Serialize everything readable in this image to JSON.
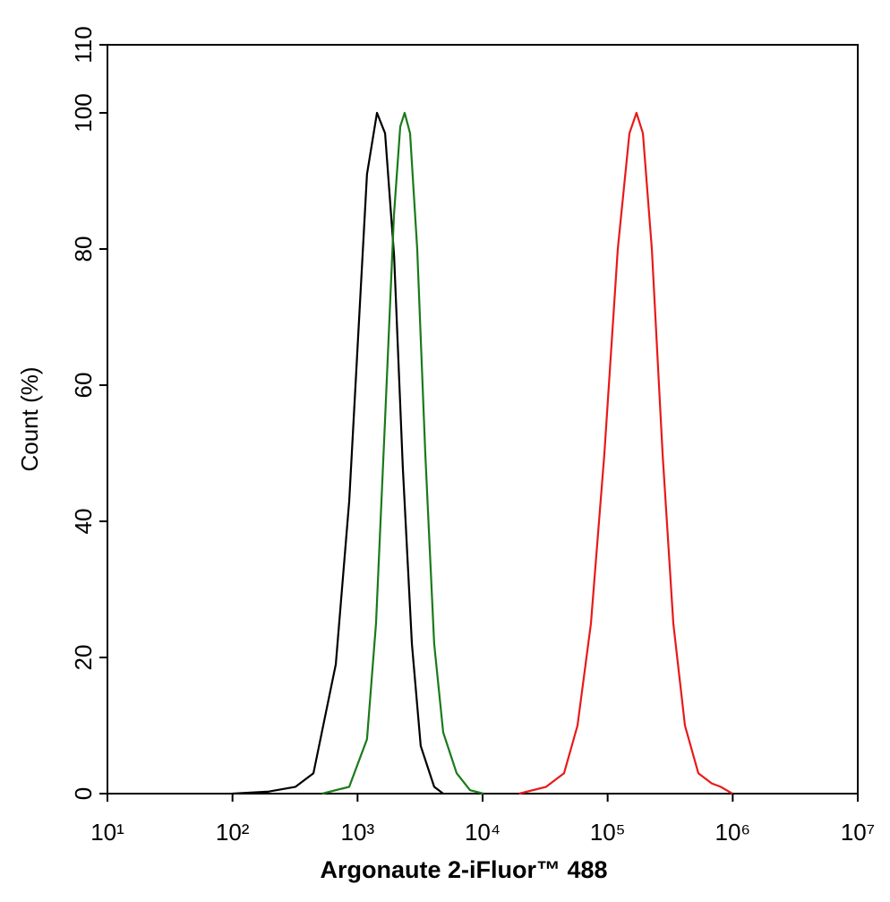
{
  "chart_data": {
    "type": "line",
    "xlabel": "Argonaute 2-iFluor™ 488",
    "ylabel": "Count  (%)",
    "xscale": "log",
    "xlim": [
      10,
      10000000
    ],
    "xticks": [
      {
        "value": 10,
        "label": "10¹"
      },
      {
        "value": 100,
        "label": "10²"
      },
      {
        "value": 1000,
        "label": "10³"
      },
      {
        "value": 10000,
        "label": "10⁴"
      },
      {
        "value": 100000,
        "label": "10⁵"
      },
      {
        "value": 1000000,
        "label": "10⁶"
      },
      {
        "value": 10000000,
        "label": "10⁷"
      }
    ],
    "ylim": [
      0,
      110
    ],
    "yticks": [
      0,
      20,
      40,
      60,
      80,
      100,
      110
    ],
    "grid": false,
    "series": [
      {
        "color": "#000000",
        "x": [
          100,
          195,
          319,
          444,
          670,
          858,
          1010,
          1190,
          1430,
          1660,
          1960,
          2300,
          2720,
          3200,
          4100,
          4840
        ],
        "values": [
          0,
          0.3,
          1,
          3,
          19,
          43,
          67,
          91,
          100,
          97,
          79,
          48,
          22,
          7,
          1,
          0
        ]
      },
      {
        "color": "#1a7a1a",
        "x": [
          522,
          858,
          1190,
          1405,
          1660,
          1955,
          2195,
          2380,
          2630,
          3000,
          3480,
          4100,
          4840,
          6200,
          7940,
          10160
        ],
        "values": [
          0,
          1,
          8,
          25,
          55,
          85,
          98,
          100,
          97,
          80,
          50,
          22,
          9,
          3,
          0.5,
          0
        ]
      },
      {
        "color": "#e8191a",
        "x": [
          19600,
          32200,
          44800,
          57400,
          73500,
          94200,
          120500,
          149300,
          170000,
          191400,
          225600,
          274800,
          335000,
          415000,
          531000,
          680000,
          802000,
          995000
        ],
        "values": [
          0,
          1,
          3,
          10,
          25,
          50,
          80,
          97,
          100,
          97,
          80,
          50,
          25,
          10,
          3,
          1.5,
          1,
          0
        ]
      }
    ]
  }
}
